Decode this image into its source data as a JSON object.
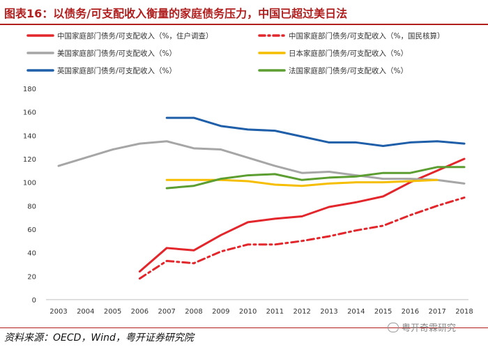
{
  "header": {
    "title": "图表16：以债务/可支配收入衡量的家庭债务压力，中国已超过美日法"
  },
  "footer": {
    "source": "资料来源：OECD，Wind，粤开证券研究院",
    "watermark": "粤开奇霖研究"
  },
  "chart_data": {
    "type": "line",
    "x": [
      2003,
      2004,
      2005,
      2006,
      2007,
      2008,
      2009,
      2010,
      2011,
      2012,
      2013,
      2014,
      2015,
      2016,
      2017,
      2018
    ],
    "ylim": [
      0,
      180
    ],
    "yticks": [
      0,
      20,
      40,
      60,
      80,
      100,
      120,
      140,
      160,
      180
    ],
    "grid": false,
    "legend_position": "top",
    "series": [
      {
        "name": "中国家庭部门债务/可支配收入（%，住户调查）",
        "color": "#e3262b",
        "dash": "solid",
        "values": [
          null,
          null,
          null,
          24,
          44,
          42,
          55,
          66,
          69,
          71,
          79,
          83,
          88,
          100,
          110,
          120
        ]
      },
      {
        "name": "中国家庭部门债务/可支配收入（%，国民核算）",
        "color": "#e3262b",
        "dash": "dashdot",
        "values": [
          null,
          null,
          null,
          18,
          33,
          31,
          41,
          47,
          47,
          50,
          54,
          59,
          63,
          72,
          80,
          87
        ]
      },
      {
        "name": "美国家庭部门债务/可支配收入（%）",
        "color": "#a6a6a6",
        "dash": "solid",
        "values": [
          114,
          121,
          128,
          133,
          135,
          129,
          128,
          121,
          114,
          108,
          109,
          106,
          103,
          103,
          102,
          99
        ]
      },
      {
        "name": "日本家庭部门债务/可支配收入（%）",
        "color": "#f5be00",
        "dash": "solid",
        "values": [
          null,
          null,
          null,
          null,
          102,
          102,
          102,
          101,
          98,
          97,
          99,
          100,
          100,
          101,
          102,
          null
        ]
      },
      {
        "name": "英国家庭部门债务/可支配收入（%）",
        "color": "#1f5ea8",
        "dash": "solid",
        "values": [
          null,
          null,
          null,
          null,
          155,
          155,
          148,
          145,
          144,
          139,
          134,
          134,
          131,
          134,
          135,
          133
        ]
      },
      {
        "name": "法国家庭部门债务/可支配收入（%）",
        "color": "#5c9e31",
        "dash": "solid",
        "values": [
          null,
          null,
          null,
          null,
          95,
          97,
          103,
          106,
          107,
          102,
          104,
          105,
          108,
          108,
          113,
          113
        ]
      }
    ]
  }
}
